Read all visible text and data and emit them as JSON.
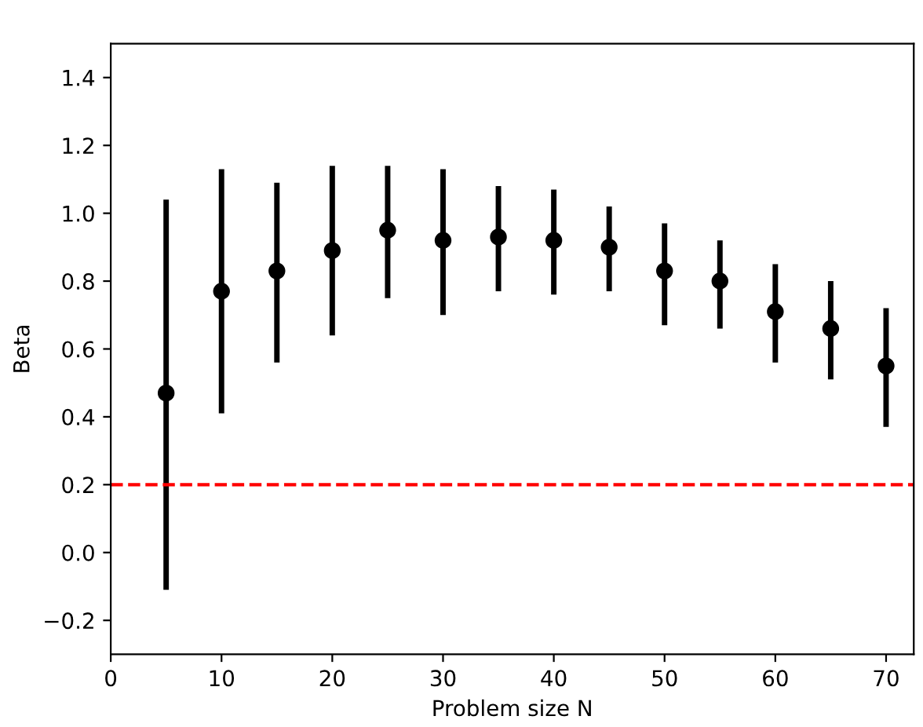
{
  "chart_data": {
    "type": "scatter",
    "xlabel": "Problem size N",
    "ylabel": "Beta",
    "x": [
      5,
      10,
      15,
      20,
      25,
      30,
      35,
      40,
      45,
      50,
      55,
      60,
      65,
      70
    ],
    "series": [
      {
        "color": "#000000",
        "values": [
          0.47,
          0.77,
          0.83,
          0.89,
          0.95,
          0.92,
          0.93,
          0.92,
          0.9,
          0.83,
          0.8,
          0.71,
          0.66,
          0.55
        ],
        "errors": [
          [
            -0.11,
            1.04
          ],
          [
            0.41,
            1.13
          ],
          [
            0.56,
            1.09
          ],
          [
            0.64,
            1.14
          ],
          [
            0.75,
            1.14
          ],
          [
            0.7,
            1.13
          ],
          [
            0.77,
            1.08
          ],
          [
            0.76,
            1.07
          ],
          [
            0.77,
            1.02
          ],
          [
            0.67,
            0.97
          ],
          [
            0.66,
            0.92
          ],
          [
            0.56,
            0.85
          ],
          [
            0.51,
            0.8
          ],
          [
            0.37,
            0.72
          ]
        ]
      }
    ],
    "marker": "circle",
    "xlim": [
      0,
      72.5
    ],
    "xticks": [
      0,
      10,
      20,
      30,
      40,
      50,
      60,
      70
    ],
    "ylim": [
      -0.3,
      1.5
    ],
    "yticks": [
      {
        "value": -0.2,
        "label": "−0.2"
      },
      {
        "value": 0,
        "label": "0.0"
      },
      {
        "value": 0.2,
        "label": "0.2"
      },
      {
        "value": 0.4,
        "label": "0.4"
      },
      {
        "value": 0.6,
        "label": "0.6"
      },
      {
        "value": 0.8,
        "label": "0.8"
      },
      {
        "value": 1,
        "label": "1.0"
      },
      {
        "value": 1.2,
        "label": "1.2"
      },
      {
        "value": 1.4,
        "label": "1.4"
      }
    ],
    "ref_lines": [
      {
        "axis": "y",
        "value": 0.2,
        "color": "#ff0000",
        "line_style": "dashed"
      }
    ],
    "grid": false,
    "legend": false
  }
}
